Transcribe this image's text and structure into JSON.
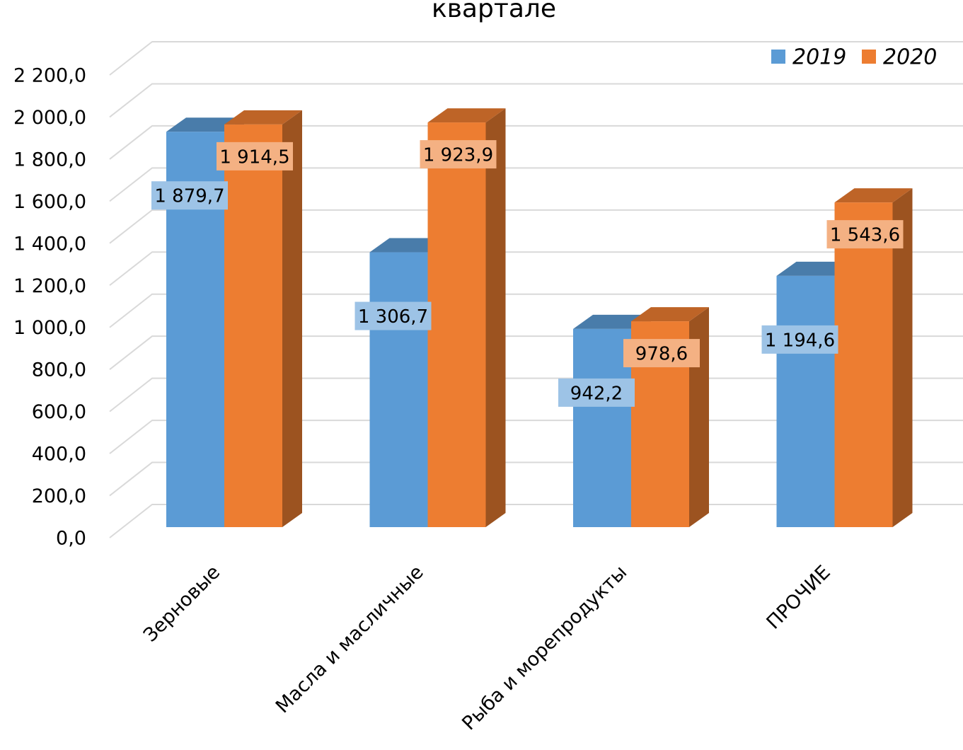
{
  "chart_data": {
    "type": "bar3d",
    "title": "квартале",
    "categories": [
      "Зерновые",
      "Масла и масличные",
      "Рыба и морепродукты",
      "ПРОЧИЕ"
    ],
    "series": [
      {
        "name": "2019",
        "color": "#5b9bd5",
        "values": [
          1879.7,
          1306.7,
          942.2,
          1194.6
        ],
        "value_labels": [
          "1 879,7",
          "1 306,7",
          "942,2",
          "1 194,6"
        ]
      },
      {
        "name": "2020",
        "color": "#ed7d31",
        "values": [
          1914.5,
          1923.9,
          978.6,
          1543.6
        ],
        "value_labels": [
          "1 914,5",
          "1 923,9",
          "978,6",
          "1 543,6"
        ]
      }
    ],
    "ylim": [
      0,
      2200
    ],
    "yticks": [
      {
        "value": 0,
        "label": "0,0"
      },
      {
        "value": 200,
        "label": "200,0"
      },
      {
        "value": 400,
        "label": "400,0"
      },
      {
        "value": 600,
        "label": "600,0"
      },
      {
        "value": 800,
        "label": "800,0"
      },
      {
        "value": 1000,
        "label": "1 000,0"
      },
      {
        "value": 1200,
        "label": "1 200,0"
      },
      {
        "value": 1400,
        "label": "1 400,0"
      },
      {
        "value": 1600,
        "label": "1 600,0"
      },
      {
        "value": 1800,
        "label": "1 800,0"
      },
      {
        "value": 2000,
        "label": "2 000,0"
      },
      {
        "value": 2200,
        "label": "2 200,0"
      }
    ],
    "grid": true,
    "legend": "top-right"
  }
}
